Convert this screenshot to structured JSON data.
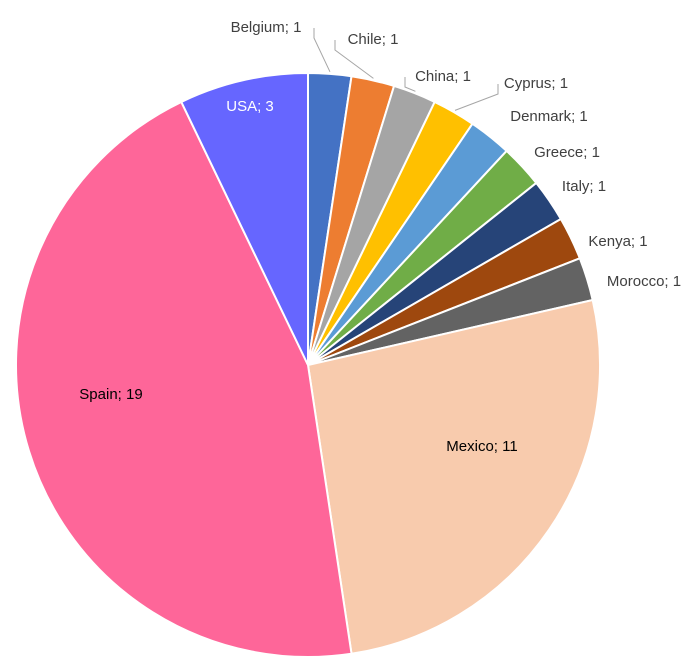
{
  "chart_data": {
    "type": "pie",
    "categories": [
      "Belgium",
      "Chile",
      "China",
      "Cyprus",
      "Denmark",
      "Greece",
      "Italy",
      "Kenya",
      "Morocco",
      "Mexico",
      "Spain",
      "USA"
    ],
    "values": [
      1,
      1,
      1,
      1,
      1,
      1,
      1,
      1,
      1,
      11,
      19,
      3
    ],
    "value_labels": [
      "Belgium; 1",
      "Chile; 1",
      "China; 1",
      "Cyprus; 1",
      "Denmark; 1",
      "Greece; 1",
      "Italy; 1",
      "Kenya; 1",
      "Morocco; 1",
      "Mexico; 11",
      "Spain; 19",
      "USA; 3"
    ],
    "colors": [
      "#4472c4",
      "#ed7d31",
      "#a5a5a5",
      "#ffc000",
      "#5b9bd5",
      "#70ad47",
      "#264478",
      "#9e480e",
      "#636363",
      "#f8cbad",
      "#fe6699",
      "#6666ff"
    ]
  }
}
